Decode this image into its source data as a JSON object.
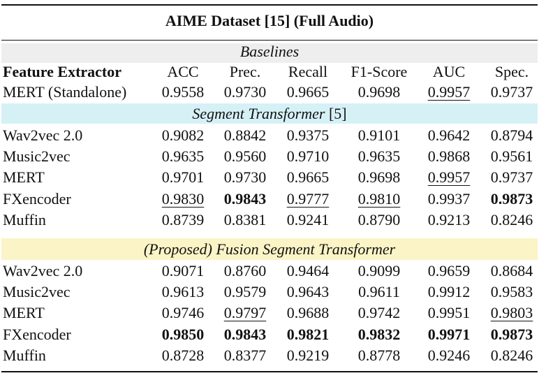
{
  "table_title": "AIME Dataset [15] (Full Audio)",
  "colors": {
    "segment_band": "#d6f1f6",
    "proposed_band": "#fbf4c6",
    "rule": "#111111"
  },
  "sections": {
    "baselines": "Baselines",
    "segment_transformer_italic": "Segment Transformer",
    "segment_transformer_ref": " [5]",
    "proposed_prefix": "(Proposed)",
    "proposed_rest": " Fusion Segment Transformer"
  },
  "columns": [
    "Feature Extractor",
    "ACC",
    "Prec.",
    "Recall",
    "F1-Score",
    "AUC",
    "Spec."
  ],
  "baseline_rows": [
    {
      "name": "MERT (Standalone)",
      "values": [
        "0.9558",
        "0.9730",
        "0.9665",
        "0.9698",
        "0.9957",
        "0.9737"
      ]
    }
  ],
  "segment_rows": [
    {
      "name": "Wav2vec 2.0",
      "values": [
        "0.9082",
        "0.8842",
        "0.9375",
        "0.9101",
        "0.9642",
        "0.8794"
      ]
    },
    {
      "name": "Music2vec",
      "values": [
        "0.9635",
        "0.9560",
        "0.9710",
        "0.9635",
        "0.9868",
        "0.9561"
      ]
    },
    {
      "name": "MERT",
      "values": [
        "0.9701",
        "0.9730",
        "0.9665",
        "0.9698",
        "0.9957",
        "0.9737"
      ]
    },
    {
      "name": "FXencoder",
      "values": [
        "0.9830",
        "0.9843",
        "0.9777",
        "0.9810",
        "0.9937",
        "0.9873"
      ]
    },
    {
      "name": "Muffin",
      "values": [
        "0.8739",
        "0.8381",
        "0.9241",
        "0.8790",
        "0.9213",
        "0.8246"
      ]
    }
  ],
  "proposed_rows": [
    {
      "name": "Wav2vec 2.0",
      "values": [
        "0.9071",
        "0.8760",
        "0.9464",
        "0.9099",
        "0.9659",
        "0.8684"
      ]
    },
    {
      "name": "Music2vec",
      "values": [
        "0.9613",
        "0.9579",
        "0.9643",
        "0.9611",
        "0.9912",
        "0.9583"
      ]
    },
    {
      "name": "MERT",
      "values": [
        "0.9746",
        "0.9797",
        "0.9688",
        "0.9742",
        "0.9951",
        "0.9803"
      ]
    },
    {
      "name": "FXencoder",
      "values": [
        "0.9850",
        "0.9843",
        "0.9821",
        "0.9832",
        "0.9971",
        "0.9873"
      ]
    },
    {
      "name": "Muffin",
      "values": [
        "0.8728",
        "0.8377",
        "0.9219",
        "0.8778",
        "0.9246",
        "0.8246"
      ]
    }
  ],
  "bold_cells": [
    "s3-1",
    "s3-5",
    "p3-0",
    "p3-1",
    "p3-2",
    "p3-3",
    "p3-4",
    "p3-5"
  ],
  "underlined_cells": [
    "b0-4",
    "s2-4",
    "s3-0",
    "s3-2",
    "s3-3",
    "p2-1",
    "p2-5"
  ]
}
